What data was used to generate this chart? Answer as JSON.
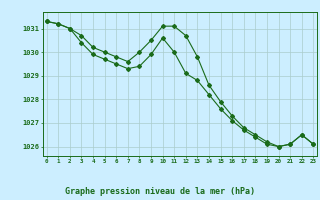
{
  "title": "Graphe pression niveau de la mer (hPa)",
  "bg_color": "#cceeff",
  "grid_color": "#aacccc",
  "line_color": "#1a6b1a",
  "hours": [
    0,
    1,
    2,
    3,
    4,
    5,
    6,
    7,
    8,
    9,
    10,
    11,
    12,
    13,
    14,
    15,
    16,
    17,
    18,
    19,
    20,
    21,
    22,
    23
  ],
  "line1": [
    1031.3,
    1031.2,
    1031.0,
    1030.7,
    1030.2,
    1030.0,
    1029.8,
    1029.6,
    1030.0,
    1030.5,
    1031.1,
    1031.1,
    1030.7,
    1029.8,
    1028.6,
    1027.9,
    1027.3,
    1026.8,
    1026.5,
    1026.2,
    1026.0,
    1026.1,
    1026.5,
    1026.1
  ],
  "line2": [
    1031.3,
    1031.2,
    1031.0,
    1030.4,
    1029.9,
    1029.7,
    1029.5,
    1029.3,
    1029.4,
    1029.9,
    1030.6,
    1030.0,
    1029.1,
    1028.8,
    1028.2,
    1027.6,
    1027.1,
    1026.7,
    1026.4,
    1026.1,
    1026.0,
    1026.1,
    1026.5,
    1026.1
  ],
  "ylim": [
    1025.6,
    1031.7
  ],
  "yticks": [
    1026,
    1027,
    1028,
    1029,
    1030,
    1031
  ],
  "xlim": [
    -0.3,
    23.3
  ],
  "figwidth": 3.2,
  "figheight": 2.0,
  "dpi": 100
}
